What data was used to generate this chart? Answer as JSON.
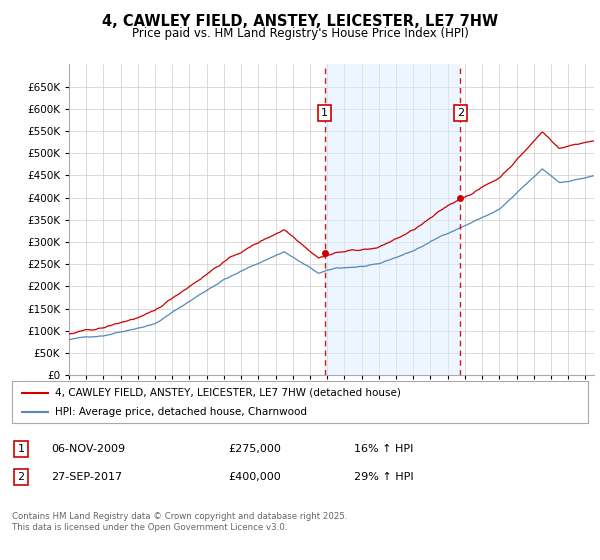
{
  "title": "4, CAWLEY FIELD, ANSTEY, LEICESTER, LE7 7HW",
  "subtitle": "Price paid vs. HM Land Registry's House Price Index (HPI)",
  "ylim": [
    0,
    700000
  ],
  "yticks": [
    0,
    50000,
    100000,
    150000,
    200000,
    250000,
    300000,
    350000,
    400000,
    450000,
    500000,
    550000,
    600000,
    650000
  ],
  "ytick_labels": [
    "£0",
    "£50K",
    "£100K",
    "£150K",
    "£200K",
    "£250K",
    "£300K",
    "£350K",
    "£400K",
    "£450K",
    "£500K",
    "£550K",
    "£600K",
    "£650K"
  ],
  "xlim_start": 1995,
  "xlim_end": 2025.5,
  "sale1_date": 2009.85,
  "sale1_price": 275000,
  "sale2_date": 2017.74,
  "sale2_price": 400000,
  "legend_property": "4, CAWLEY FIELD, ANSTEY, LEICESTER, LE7 7HW (detached house)",
  "legend_hpi": "HPI: Average price, detached house, Charnwood",
  "annotation1_date": "06-NOV-2009",
  "annotation1_price": "£275,000",
  "annotation1_hpi": "16% ↑ HPI",
  "annotation2_date": "27-SEP-2017",
  "annotation2_price": "£400,000",
  "annotation2_hpi": "29% ↑ HPI",
  "footer": "Contains HM Land Registry data © Crown copyright and database right 2025.\nThis data is licensed under the Open Government Licence v3.0.",
  "line_color_property": "#cc0000",
  "line_color_hpi": "#5588bb",
  "background_color": "#ffffff",
  "grid_color": "#cccccc",
  "shade_color": "#ddeeff",
  "vline_color": "#cc0000"
}
